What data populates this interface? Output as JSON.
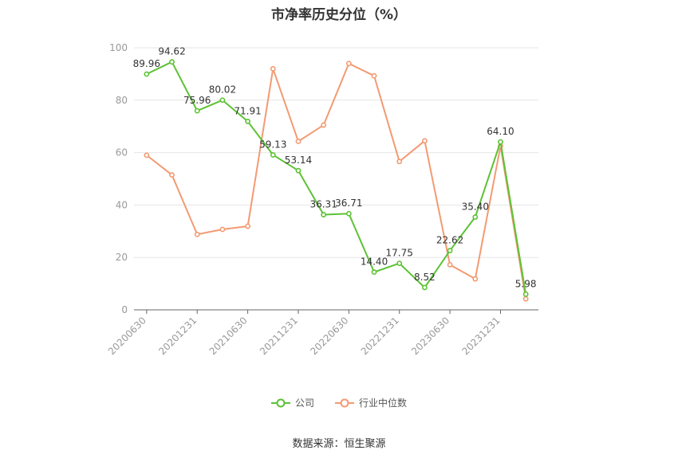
{
  "chart_data": {
    "type": "line",
    "title": "市净率历史分位（%）",
    "ylim": [
      0,
      100
    ],
    "yticks": [
      0,
      20,
      40,
      60,
      80,
      100
    ],
    "x": [
      "20200630",
      "20200930",
      "20201231",
      "20210331",
      "20210630",
      "20210930",
      "20211231",
      "20220331",
      "20220630",
      "20220930",
      "20221231",
      "20230331",
      "20230630",
      "20230930",
      "20231231",
      "20240331"
    ],
    "xtick_labels": [
      "20200630",
      "20201231",
      "20210630",
      "20211231",
      "20220630",
      "20221231",
      "20230630",
      "20231231"
    ],
    "series": [
      {
        "name": "公司",
        "color": "#5cc234",
        "values": [
          89.96,
          94.62,
          75.96,
          80.02,
          71.91,
          59.13,
          53.14,
          36.31,
          36.71,
          14.4,
          17.75,
          8.52,
          22.62,
          35.4,
          64.1,
          5.98
        ],
        "labels": [
          "89.96",
          "94.62",
          "75.96",
          "80.02",
          "71.91",
          "59.13",
          "53.14",
          "36.31",
          "36.71",
          "14.40",
          "17.75",
          "8.52",
          "22.62",
          "35.40",
          "64.10",
          "5.98"
        ]
      },
      {
        "name": "行业中位数",
        "color": "#f39a72",
        "values": [
          59.0,
          51.5,
          28.8,
          30.7,
          31.9,
          92.0,
          64.3,
          70.5,
          94.0,
          89.3,
          56.6,
          64.5,
          17.2,
          11.8,
          62.5,
          4.2
        ]
      }
    ],
    "grid": true,
    "legend": "bottom-center"
  },
  "source_text": "数据来源：恒生聚源"
}
